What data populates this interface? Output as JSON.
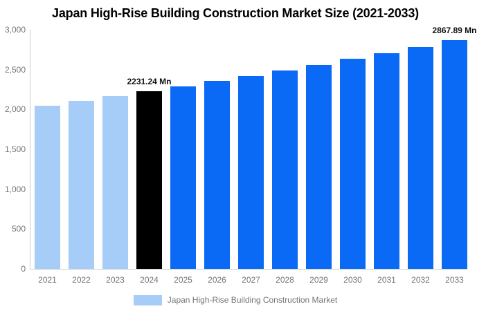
{
  "chart_data": {
    "type": "bar",
    "title": "Japan High-Rise Building Construction Market Size (2021-2033)",
    "xlabel": "",
    "ylabel": "",
    "unit": "Mn",
    "grid": false,
    "ylim": [
      0,
      3000
    ],
    "y_ticks": {
      "values": [
        0,
        500,
        1000,
        1500,
        2000,
        2500,
        3000
      ],
      "labels": [
        "0",
        "500",
        "1,000",
        "1,500",
        "2,000",
        "2,500",
        "3,000"
      ]
    },
    "categories": [
      "2021",
      "2022",
      "2023",
      "2024",
      "2025",
      "2026",
      "2027",
      "2028",
      "2029",
      "2030",
      "2031",
      "2032",
      "2033"
    ],
    "values": [
      2045,
      2104,
      2167,
      2231.24,
      2292,
      2355,
      2421,
      2488,
      2558,
      2635,
      2709,
      2784,
      2867.89
    ],
    "bar_roles": [
      "historical",
      "historical",
      "historical",
      "base_year",
      "forecast",
      "forecast",
      "forecast",
      "forecast",
      "forecast",
      "forecast",
      "forecast",
      "forecast",
      "forecast"
    ],
    "colors": {
      "historical": "#a5cdf7",
      "base_year": "#000000",
      "forecast": "#0b6af5",
      "axis_line": "#cccccc",
      "tick_text": "#757575",
      "title_text": "#000000",
      "value_label_text": "#111111"
    },
    "data_labels": [
      {
        "index": 3,
        "text": "2231.24 Mn"
      },
      {
        "index": 12,
        "text": "2867.89 Mn"
      }
    ],
    "legend": {
      "label": "Japan High-Rise Building Construction Market",
      "position": "bottom",
      "swatch_color": "#a5cdf7"
    }
  }
}
